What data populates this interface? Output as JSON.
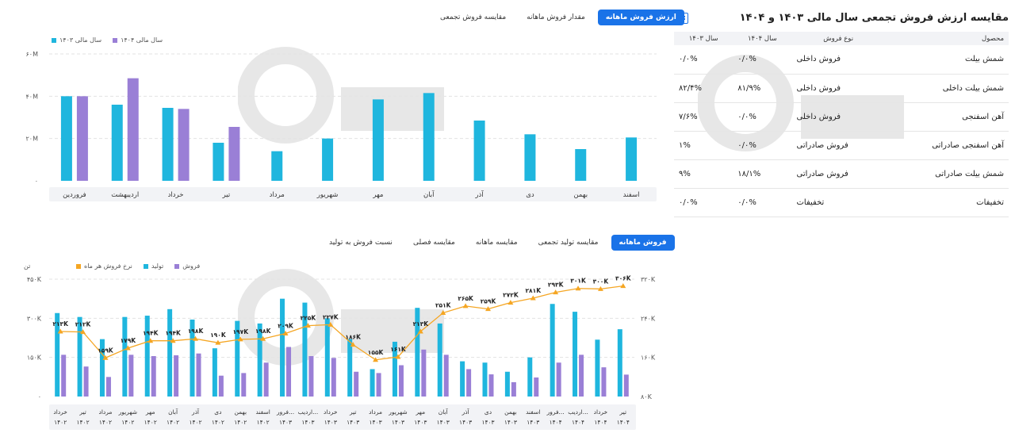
{
  "top_tabs": [
    {
      "label": "مقایسه فروش تجمعی",
      "active": false
    },
    {
      "label": "مقدار فروش ماهانه",
      "active": false
    },
    {
      "label": "ارزش فروش ماهانه",
      "active": true
    }
  ],
  "top_legend": {
    "s1": "سال مالی ۱۴۰۳",
    "s2": "سال مالی ۱۴۰۴"
  },
  "bottom_tabs": [
    {
      "label": "نسبت فروش به تولید",
      "active": false
    },
    {
      "label": "مقایسه فصلی",
      "active": false
    },
    {
      "label": "مقایسه ماهانه",
      "active": false
    },
    {
      "label": "مقایسه تولید تجمعی",
      "active": false
    },
    {
      "label": "فروش ماهانه",
      "active": true
    }
  ],
  "bottom_legend": {
    "sales": "فروش",
    "production": "تولید",
    "rate": "نرخ فروش هر ماه"
  },
  "table": {
    "title": "مقایسه ارزش فروش تجمعی سال مالی ۱۴۰۳ و ۱۴۰۴",
    "headers": [
      "محصول",
      "نوع فروش",
      "سال ۱۴۰۴",
      "سال ۱۴۰۳"
    ],
    "rows": [
      [
        "شمش بیلت",
        "فروش داخلی",
        "۰/۰%",
        "۰/۰%"
      ],
      [
        "شمش بیلت داخلی",
        "فروش داخلی",
        "۸۱/۹%",
        "۸۲/۴%"
      ],
      [
        "آهن اسفنجی",
        "فروش داخلی",
        "۰/۰%",
        "۷/۶%"
      ],
      [
        "آهن اسفنجی صادراتی",
        "فروش صادراتی",
        "۰/۰%",
        "۱%"
      ],
      [
        "شمش بیلت صادراتی",
        "فروش صادراتی",
        "۱۸/۱%",
        "۹%"
      ],
      [
        "تخفیفات",
        "تخفیفات",
        "۰/۰%",
        "۰/۰%"
      ]
    ]
  },
  "colors": {
    "s1403": "#1fb6de",
    "s1404": "#9a7fd6",
    "production": "#1fb6de",
    "sales": "#9a7fd6",
    "rate": "#f5a623",
    "active_tab": "#1a73e8"
  },
  "chart_data": [
    {
      "type": "bar",
      "categories": [
        "فروردین",
        "اردیبهشت",
        "خرداد",
        "تیر",
        "مرداد",
        "شهریور",
        "مهر",
        "آبان",
        "آذر",
        "دی",
        "بهمن",
        "اسفند"
      ],
      "series": [
        {
          "name": "سال مالی ۱۴۰۳",
          "values": [
            40,
            36,
            34.5,
            18,
            14,
            20,
            38.5,
            41.5,
            28.5,
            22,
            15,
            20.5
          ]
        },
        {
          "name": "سال مالی ۱۴۰۴",
          "values": [
            40,
            48.5,
            34,
            25.5,
            null,
            null,
            null,
            null,
            null,
            null,
            null,
            null
          ]
        }
      ],
      "yticks": [
        "۶۰M",
        "۴۰M",
        "۲۰M",
        "۰"
      ],
      "ylim": [
        0,
        60
      ]
    },
    {
      "type": "bar",
      "categories": [
        "خرداد ۱۴۰۲",
        "تیر ۱۴۰۲",
        "مرداد ۱۴۰۲",
        "شهریور ۱۴۰۲",
        "مهر ۱۴۰۲",
        "آبان ۱۴۰۲",
        "آذر ۱۴۰۲",
        "دی ۱۴۰۲",
        "بهمن ۱۴۰۲",
        "اسفند ۱۴۰۲",
        "فرور... ۱۴۰۳",
        "اردیب... ۱۴۰۳",
        "خرداد ۱۴۰۳",
        "تیر ۱۴۰۳",
        "مرداد ۱۴۰۳",
        "شهریور ۱۴۰۳",
        "مهر ۱۴۰۳",
        "آبان ۱۴۰۳",
        "آذر ۱۴۰۳",
        "دی ۱۴۰۳",
        "بهمن ۱۴۰۳",
        "اسفند ۱۴۰۳",
        "فرور... ۱۴۰۴",
        "اردیب... ۱۴۰۴",
        "خرداد ۱۴۰۴",
        "تیر ۱۴۰۴"
      ],
      "series": [
        {
          "name": "تولید",
          "values": [
            320000,
            305000,
            220000,
            305000,
            310000,
            335000,
            295000,
            185000,
            290000,
            280000,
            375000,
            360000,
            300000,
            220000,
            105000,
            210000,
            340000,
            280000,
            135000,
            130000,
            95000,
            150000,
            355000,
            325000,
            218000,
            258000
          ]
        },
        {
          "name": "فروش",
          "values": [
            160000,
            115000,
            75000,
            160000,
            155000,
            158000,
            165000,
            80000,
            90000,
            130000,
            190000,
            155000,
            148000,
            95000,
            90000,
            120000,
            180000,
            160000,
            105000,
            85000,
            55000,
            73000,
            130000,
            160000,
            112000,
            84000
          ]
        },
        {
          "name": "نرخ فروش هر ماه",
          "axis": "right",
          "values": [
            213000,
            212000,
            159000,
            179000,
            194000,
            194000,
            198000,
            190000,
            197000,
            198000,
            209000,
            225000,
            227000,
            186000,
            155000,
            161000,
            213000,
            251000,
            265000,
            259000,
            272000,
            281000,
            293000,
            301000,
            300000,
            306000
          ],
          "labels": [
            "۲۱۳K",
            "۲۱۲K",
            "۱۵۹K",
            "۱۷۹K",
            "۱۹۴K",
            "۱۹۴K",
            "۱۹۸K",
            "۱۹۰K",
            "۱۹۷K",
            "۱۹۸K",
            "۲۰۹K",
            "۲۲۵K",
            "۲۲۷K",
            "۱۸۶K",
            "۱۵۵K",
            "۱۶۱K",
            "۲۱۳K",
            "۲۵۱K",
            "۲۶۵K",
            "۲۵۹K",
            "۲۷۲K",
            "۲۸۱K",
            "۲۹۳K",
            "۳۰۱K",
            "۳۰۰K",
            "۳۰۶K"
          ]
        }
      ],
      "ylabel": "تن",
      "yticks_left": [
        "۴۵۰K",
        "۳۰۰K",
        "۱۵۰K",
        "۰"
      ],
      "ylim_left": [
        0,
        450000
      ],
      "yticks_right": [
        "۳۲۰K",
        "۲۴۰K",
        "۱۶۰K",
        "۸۰K"
      ],
      "ylim_right": [
        80000,
        320000
      ]
    }
  ]
}
